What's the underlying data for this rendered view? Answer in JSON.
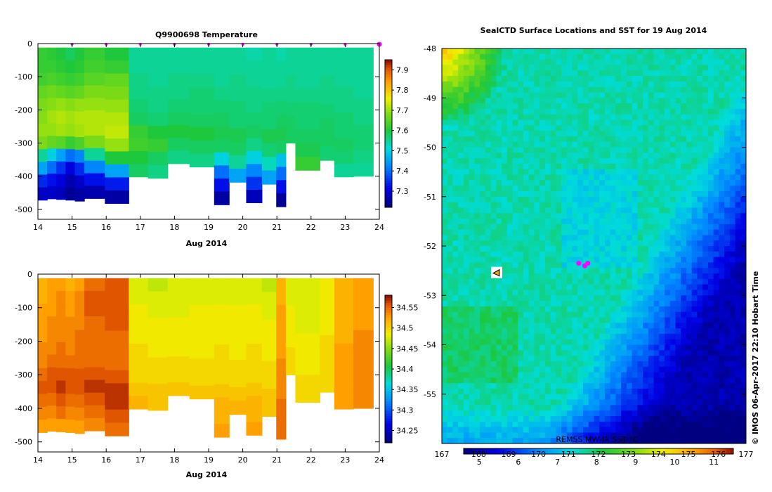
{
  "chart_data": [
    {
      "type": "heatmap",
      "title": "Q9900698  Temperature",
      "xlabel": "Aug 2014",
      "xlim": [
        14,
        24
      ],
      "ylim": [
        -530,
        0
      ],
      "xticks": [
        "14",
        "15",
        "16",
        "17",
        "18",
        "19",
        "20",
        "21",
        "22",
        "23",
        "24"
      ],
      "yticks": [
        "0",
        "-100",
        "-200",
        "-300",
        "-400",
        "-500"
      ],
      "colorbar": {
        "ticks": [
          "7.3",
          "7.4",
          "7.5",
          "7.6",
          "7.7",
          "7.8",
          "7.9"
        ],
        "range": [
          7.22,
          7.95
        ]
      },
      "profiles": [
        {
          "t": 14.0,
          "w": 0.27,
          "depth": -472,
          "v": [
            7.62,
            7.62,
            7.63,
            7.66,
            7.68,
            7.69,
            7.7,
            7.68,
            7.55,
            7.45,
            7.34,
            7.28
          ]
        },
        {
          "t": 14.27,
          "w": 0.27,
          "depth": -468,
          "v": [
            7.61,
            7.62,
            7.64,
            7.67,
            7.69,
            7.71,
            7.7,
            7.66,
            7.5,
            7.4,
            7.32,
            7.28
          ]
        },
        {
          "t": 14.54,
          "w": 0.27,
          "depth": -470,
          "v": [
            7.6,
            7.61,
            7.63,
            7.66,
            7.7,
            7.72,
            7.71,
            7.65,
            7.45,
            7.35,
            7.3,
            7.27
          ]
        },
        {
          "t": 14.81,
          "w": 0.27,
          "depth": -472,
          "v": [
            7.58,
            7.6,
            7.62,
            7.65,
            7.69,
            7.71,
            7.7,
            7.62,
            7.4,
            7.3,
            7.26,
            7.24
          ]
        },
        {
          "t": 15.08,
          "w": 0.28,
          "depth": -475,
          "v": [
            7.6,
            7.61,
            7.63,
            7.66,
            7.7,
            7.72,
            7.71,
            7.64,
            7.42,
            7.34,
            7.28,
            7.25
          ]
        },
        {
          "t": 15.36,
          "w": 0.6,
          "depth": -467,
          "v": [
            7.62,
            7.63,
            7.65,
            7.68,
            7.7,
            7.72,
            7.72,
            7.68,
            7.55,
            7.42,
            7.32,
            7.26
          ]
        },
        {
          "t": 15.96,
          "w": 0.7,
          "depth": -482,
          "v": [
            7.6,
            7.62,
            7.66,
            7.68,
            7.7,
            7.72,
            7.73,
            7.7,
            7.6,
            7.45,
            7.33,
            7.25
          ]
        },
        {
          "t": 16.66,
          "w": 0.56,
          "depth": -402,
          "v": [
            7.55,
            7.55,
            7.56,
            7.56,
            7.57,
            7.58,
            7.62,
            7.63,
            7.6,
            7.58
          ]
        },
        {
          "t": 17.22,
          "w": 0.58,
          "depth": -406,
          "v": [
            7.55,
            7.55,
            7.55,
            7.56,
            7.56,
            7.57,
            7.6,
            7.62,
            7.58,
            7.56
          ]
        },
        {
          "t": 17.8,
          "w": 0.64,
          "depth": -362,
          "v": [
            7.55,
            7.55,
            7.56,
            7.56,
            7.57,
            7.58,
            7.6,
            7.58,
            7.56
          ]
        },
        {
          "t": 18.44,
          "w": 0.72,
          "depth": -372,
          "v": [
            7.55,
            7.55,
            7.56,
            7.57,
            7.57,
            7.58,
            7.6,
            7.58,
            7.56
          ]
        },
        {
          "t": 19.16,
          "w": 0.44,
          "depth": -486,
          "v": [
            7.55,
            7.55,
            7.55,
            7.56,
            7.57,
            7.58,
            7.59,
            7.58,
            7.5,
            7.4,
            7.32,
            7.25
          ]
        },
        {
          "t": 19.6,
          "w": 0.5,
          "depth": -418,
          "v": [
            7.55,
            7.55,
            7.56,
            7.56,
            7.57,
            7.57,
            7.59,
            7.58,
            7.55,
            7.45
          ]
        },
        {
          "t": 20.1,
          "w": 0.46,
          "depth": -480,
          "v": [
            7.54,
            7.55,
            7.55,
            7.56,
            7.56,
            7.57,
            7.58,
            7.56,
            7.5,
            7.42,
            7.35,
            7.27
          ]
        },
        {
          "t": 20.56,
          "w": 0.42,
          "depth": -424,
          "v": [
            7.55,
            7.55,
            7.55,
            7.56,
            7.57,
            7.57,
            7.59,
            7.57,
            7.53,
            7.45
          ]
        },
        {
          "t": 20.98,
          "w": 0.28,
          "depth": -492,
          "v": [
            7.54,
            7.55,
            7.55,
            7.56,
            7.57,
            7.58,
            7.59,
            7.58,
            7.48,
            7.4,
            7.32,
            7.24
          ]
        },
        {
          "t": 21.26,
          "w": 0.28,
          "depth": -300,
          "v": [
            7.55,
            7.55,
            7.56,
            7.56,
            7.57,
            7.58,
            7.58
          ]
        },
        {
          "t": 21.54,
          "w": 0.72,
          "depth": -382,
          "v": [
            7.55,
            7.55,
            7.55,
            7.56,
            7.57,
            7.57,
            7.58,
            7.59,
            7.62
          ]
        },
        {
          "t": 22.26,
          "w": 0.42,
          "depth": -352,
          "v": [
            7.55,
            7.55,
            7.56,
            7.56,
            7.57,
            7.58,
            7.58,
            7.57
          ]
        },
        {
          "t": 22.68,
          "w": 0.56,
          "depth": -402,
          "v": [
            7.55,
            7.55,
            7.55,
            7.56,
            7.56,
            7.57,
            7.57,
            7.58,
            7.57,
            7.55
          ]
        },
        {
          "t": 23.24,
          "w": 0.58,
          "depth": -400,
          "v": [
            7.55,
            7.55,
            7.55,
            7.55,
            7.56,
            7.56,
            7.57,
            7.57,
            7.56,
            7.55
          ]
        }
      ],
      "surface_markers": [
        15.0,
        16.0,
        17.0,
        18.0,
        19.0,
        20.0,
        21.0,
        22.0,
        23.0,
        24.0
      ]
    },
    {
      "type": "heatmap",
      "title": "",
      "xlabel": "Aug 2014",
      "xlim": [
        14,
        24
      ],
      "ylim": [
        -530,
        0
      ],
      "xticks": [
        "14",
        "15",
        "16",
        "17",
        "18",
        "19",
        "20",
        "21",
        "22",
        "23",
        "24"
      ],
      "yticks": [
        "0",
        "-100",
        "-200",
        "-300",
        "-400",
        "-500"
      ],
      "colorbar": {
        "ticks": [
          "34.25",
          "34.3",
          "34.35",
          "34.4",
          "34.45",
          "34.5",
          "34.55"
        ],
        "range": [
          34.22,
          34.58
        ]
      },
      "profiles": [
        {
          "t": 14.0,
          "w": 0.27,
          "depth": -472,
          "v": [
            34.52,
            34.52,
            34.53,
            34.53,
            34.53,
            34.54,
            34.54,
            34.55,
            34.56,
            34.55,
            34.54,
            34.53
          ]
        },
        {
          "t": 14.27,
          "w": 0.27,
          "depth": -468,
          "v": [
            34.53,
            34.53,
            34.53,
            34.54,
            34.54,
            34.54,
            34.55,
            34.56,
            34.56,
            34.55,
            34.54,
            34.53
          ]
        },
        {
          "t": 14.54,
          "w": 0.27,
          "depth": -470,
          "v": [
            34.53,
            34.54,
            34.54,
            34.54,
            34.54,
            34.55,
            34.55,
            34.56,
            34.57,
            34.56,
            34.55,
            34.53
          ]
        },
        {
          "t": 14.81,
          "w": 0.27,
          "depth": -472,
          "v": [
            34.52,
            34.53,
            34.53,
            34.54,
            34.54,
            34.54,
            34.55,
            34.56,
            34.56,
            34.55,
            34.54,
            34.53
          ]
        },
        {
          "t": 15.08,
          "w": 0.28,
          "depth": -475,
          "v": [
            34.53,
            34.54,
            34.54,
            34.54,
            34.55,
            34.55,
            34.55,
            34.56,
            34.56,
            34.55,
            34.54,
            34.53
          ]
        },
        {
          "t": 15.36,
          "w": 0.6,
          "depth": -467,
          "v": [
            34.55,
            34.56,
            34.56,
            34.55,
            34.55,
            34.55,
            34.55,
            34.56,
            34.57,
            34.56,
            34.55,
            34.54
          ]
        },
        {
          "t": 15.96,
          "w": 0.7,
          "depth": -482,
          "v": [
            34.56,
            34.56,
            34.56,
            34.56,
            34.55,
            34.55,
            34.55,
            34.56,
            34.57,
            34.57,
            34.56,
            34.55
          ]
        },
        {
          "t": 16.66,
          "w": 0.56,
          "depth": -402,
          "v": [
            34.48,
            34.48,
            34.49,
            34.49,
            34.49,
            34.5,
            34.5,
            34.5,
            34.51,
            34.52
          ]
        },
        {
          "t": 17.22,
          "w": 0.58,
          "depth": -406,
          "v": [
            34.47,
            34.48,
            34.48,
            34.49,
            34.49,
            34.49,
            34.5,
            34.5,
            34.51,
            34.51
          ]
        },
        {
          "t": 17.8,
          "w": 0.64,
          "depth": -362,
          "v": [
            34.48,
            34.48,
            34.48,
            34.49,
            34.49,
            34.49,
            34.5,
            34.5,
            34.51
          ]
        },
        {
          "t": 18.44,
          "w": 0.72,
          "depth": -372,
          "v": [
            34.48,
            34.48,
            34.49,
            34.49,
            34.49,
            34.49,
            34.5,
            34.5,
            34.51
          ]
        },
        {
          "t": 19.16,
          "w": 0.44,
          "depth": -486,
          "v": [
            34.48,
            34.48,
            34.49,
            34.49,
            34.49,
            34.5,
            34.5,
            34.5,
            34.51,
            34.52,
            34.52,
            34.53
          ]
        },
        {
          "t": 19.6,
          "w": 0.5,
          "depth": -418,
          "v": [
            34.48,
            34.48,
            34.49,
            34.49,
            34.49,
            34.49,
            34.5,
            34.5,
            34.51,
            34.52
          ]
        },
        {
          "t": 20.1,
          "w": 0.46,
          "depth": -480,
          "v": [
            34.48,
            34.48,
            34.49,
            34.49,
            34.49,
            34.5,
            34.5,
            34.5,
            34.51,
            34.52,
            34.52,
            34.53
          ]
        },
        {
          "t": 20.56,
          "w": 0.42,
          "depth": -424,
          "v": [
            34.47,
            34.48,
            34.48,
            34.49,
            34.49,
            34.49,
            34.5,
            34.5,
            34.51,
            34.51
          ]
        },
        {
          "t": 20.98,
          "w": 0.28,
          "depth": -492,
          "v": [
            34.52,
            34.52,
            34.53,
            34.53,
            34.53,
            34.53,
            34.54,
            34.54,
            34.54,
            34.55,
            34.55,
            34.55
          ]
        },
        {
          "t": 21.26,
          "w": 0.28,
          "depth": -300,
          "v": [
            34.48,
            34.48,
            34.49,
            34.49,
            34.49,
            34.5,
            34.5
          ]
        },
        {
          "t": 21.54,
          "w": 0.72,
          "depth": -382,
          "v": [
            34.48,
            34.48,
            34.48,
            34.48,
            34.49,
            34.49,
            34.49,
            34.5,
            34.5
          ]
        },
        {
          "t": 22.26,
          "w": 0.42,
          "depth": -352,
          "v": [
            34.49,
            34.49,
            34.49,
            34.49,
            34.5,
            34.5,
            34.5,
            34.5
          ]
        },
        {
          "t": 22.68,
          "w": 0.56,
          "depth": -402,
          "v": [
            34.52,
            34.52,
            34.52,
            34.52,
            34.52,
            34.53,
            34.53,
            34.53,
            34.53,
            34.53
          ]
        },
        {
          "t": 23.24,
          "w": 0.58,
          "depth": -400,
          "v": [
            34.53,
            34.53,
            34.53,
            34.53,
            34.54,
            34.54,
            34.54,
            34.54,
            34.54,
            34.54
          ]
        }
      ]
    },
    {
      "type": "heatmap",
      "title": "SealCTD Surface Locations and SST for 19 Aug 2014",
      "xlim": [
        167,
        177
      ],
      "ylim": [
        -56,
        -48
      ],
      "xticks": [
        "167",
        "168",
        "169",
        "170",
        "171",
        "172",
        "173",
        "174",
        "175",
        "176",
        "177"
      ],
      "yticks": [
        "-48",
        "-49",
        "-50",
        "-51",
        "-52",
        "-53",
        "-54",
        "-55"
      ],
      "colorbar": {
        "label": "REMSS MW-IR SST °C",
        "ticks": [
          "5",
          "6",
          "7",
          "8",
          "9",
          "10",
          "11"
        ],
        "range": [
          4.6,
          11.5
        ]
      },
      "field_note": "SST field: warm (orange) NW corner near 167,-48; green mid-field ~7.5-8 °C; cold (blue) SE region ~5 °C",
      "surface_locations": [
        {
          "lon": 171.5,
          "lat": -52.35
        },
        {
          "lon": 171.7,
          "lat": -52.4
        },
        {
          "lon": 171.8,
          "lat": -52.35
        }
      ],
      "seal_marker": {
        "lon": 168.8,
        "lat": -52.55
      },
      "credit": "© IMOS 06-Apr-2017 22:10 Hobart Time"
    }
  ]
}
